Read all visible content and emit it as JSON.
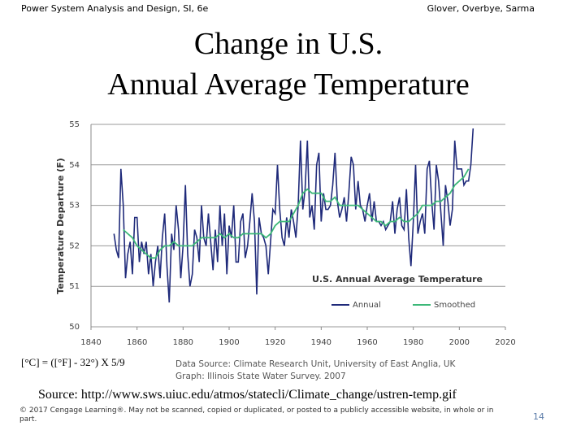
{
  "slide": {
    "header_left": "Power System Analysis and Design, SI, 6e",
    "header_right": "Glover, Overbye, Sarma",
    "title_lines": [
      "Change in U.S.",
      "Annual Average Temperature"
    ],
    "conversion": "[°C] = ([°F] - 32°) X 5/9",
    "data_source": [
      "Data Source: Climate Research Unit, University of East Anglia, UK",
      "Graph: Illinois State Water Survey. 2007"
    ],
    "source": "Source: http://www.sws.uiuc.edu/atmos/statecli/Climate_change/ustren-temp.gif",
    "copyright": "© 2017 Cengage Learning®. May not be scanned, copied or duplicated, or posted to a publicly accessible website, in whole or in part.",
    "page_number": "14"
  },
  "chart_data": {
    "type": "line",
    "title": "U.S. Annual Average Temperature",
    "ylabel": "Temperature Departure (F)",
    "xlim": [
      1840,
      2020
    ],
    "xticks": [
      1840,
      1860,
      1880,
      1900,
      1920,
      1940,
      1960,
      1980,
      2000,
      2020
    ],
    "ylim": [
      50,
      55
    ],
    "yticks": [
      50,
      51,
      52,
      53,
      54,
      55
    ],
    "grid": true,
    "legend": "lower right",
    "series": [
      {
        "name": "Annual",
        "color": "#1f2a7a",
        "x": [
          1850,
          1851,
          1852,
          1853,
          1854,
          1855,
          1856,
          1857,
          1858,
          1859,
          1860,
          1861,
          1862,
          1863,
          1864,
          1865,
          1866,
          1867,
          1868,
          1869,
          1870,
          1871,
          1872,
          1873,
          1874,
          1875,
          1876,
          1877,
          1878,
          1879,
          1880,
          1881,
          1882,
          1883,
          1884,
          1885,
          1886,
          1887,
          1888,
          1889,
          1890,
          1891,
          1892,
          1893,
          1894,
          1895,
          1896,
          1897,
          1898,
          1899,
          1900,
          1901,
          1902,
          1903,
          1904,
          1905,
          1906,
          1907,
          1908,
          1909,
          1910,
          1911,
          1912,
          1913,
          1914,
          1915,
          1916,
          1917,
          1918,
          1919,
          1920,
          1921,
          1922,
          1923,
          1924,
          1925,
          1926,
          1927,
          1928,
          1929,
          1930,
          1931,
          1932,
          1933,
          1934,
          1935,
          1936,
          1937,
          1938,
          1939,
          1940,
          1941,
          1942,
          1943,
          1944,
          1945,
          1946,
          1947,
          1948,
          1949,
          1950,
          1951,
          1952,
          1953,
          1954,
          1955,
          1956,
          1957,
          1958,
          1959,
          1960,
          1961,
          1962,
          1963,
          1964,
          1965,
          1966,
          1967,
          1968,
          1969,
          1970,
          1971,
          1972,
          1973,
          1974,
          1975,
          1976,
          1977,
          1978,
          1979,
          1980,
          1981,
          1982,
          1983,
          1984,
          1985,
          1986,
          1987,
          1988,
          1989,
          1990,
          1991,
          1992,
          1993,
          1994,
          1995,
          1996,
          1997,
          1998,
          1999,
          2000,
          2001,
          2002,
          2003,
          2004,
          2005,
          2006
        ],
        "values": [
          52.3,
          51.9,
          51.7,
          53.9,
          53.0,
          51.2,
          51.8,
          52.1,
          51.3,
          52.7,
          52.7,
          51.6,
          52.1,
          51.8,
          52.1,
          51.3,
          51.8,
          51.0,
          51.6,
          52.0,
          51.2,
          52.2,
          52.8,
          51.5,
          50.6,
          52.3,
          51.9,
          53.0,
          52.4,
          51.2,
          52.0,
          53.5,
          51.8,
          51.0,
          51.3,
          52.4,
          52.2,
          51.6,
          53.0,
          52.2,
          52.0,
          52.8,
          52.1,
          51.4,
          52.4,
          51.6,
          53.0,
          52.0,
          52.8,
          51.3,
          52.5,
          52.2,
          53.0,
          51.6,
          51.6,
          52.6,
          52.8,
          51.7,
          52.0,
          52.6,
          53.3,
          52.6,
          50.8,
          52.7,
          52.3,
          52.2,
          52.0,
          51.3,
          52.1,
          52.9,
          52.8,
          54.0,
          52.9,
          52.2,
          52.0,
          52.7,
          52.2,
          52.9,
          52.6,
          52.2,
          53.0,
          54.6,
          52.9,
          53.4,
          54.6,
          52.7,
          53.0,
          52.4,
          54.0,
          54.3,
          52.6,
          53.3,
          52.9,
          52.9,
          53.0,
          53.5,
          54.3,
          53.1,
          52.7,
          52.9,
          53.2,
          52.6,
          53.3,
          54.2,
          54.0,
          52.9,
          53.6,
          53.0,
          52.9,
          52.6,
          53.0,
          53.3,
          52.6,
          53.1,
          52.6,
          52.6,
          52.5,
          52.6,
          52.4,
          52.5,
          52.6,
          53.1,
          52.3,
          52.9,
          53.2,
          52.5,
          52.4,
          53.4,
          52.2,
          51.5,
          52.6,
          54.0,
          52.3,
          52.6,
          52.8,
          52.3,
          53.9,
          54.1,
          53.1,
          52.4,
          54.0,
          53.6,
          52.8,
          52.0,
          53.5,
          53.1,
          52.5,
          52.9,
          54.6,
          53.9,
          53.9,
          53.9,
          53.5,
          53.6,
          53.6,
          54.0,
          54.9
        ]
      },
      {
        "name": "Smoothed",
        "color": "#3cb878",
        "x": [
          1854,
          1856,
          1858,
          1860,
          1862,
          1864,
          1866,
          1868,
          1870,
          1872,
          1874,
          1876,
          1878,
          1880,
          1882,
          1884,
          1886,
          1888,
          1890,
          1892,
          1894,
          1896,
          1898,
          1900,
          1902,
          1904,
          1906,
          1908,
          1910,
          1912,
          1914,
          1916,
          1918,
          1920,
          1922,
          1924,
          1926,
          1928,
          1930,
          1932,
          1934,
          1936,
          1938,
          1940,
          1942,
          1944,
          1946,
          1948,
          1950,
          1952,
          1954,
          1956,
          1958,
          1960,
          1962,
          1964,
          1966,
          1968,
          1970,
          1972,
          1974,
          1976,
          1978,
          1980,
          1982,
          1984,
          1986,
          1988,
          1990,
          1992,
          1994,
          1996,
          1998,
          2000,
          2002,
          2004
        ],
        "values": [
          52.4,
          52.3,
          52.2,
          52.0,
          51.9,
          51.8,
          51.7,
          51.7,
          51.9,
          52.0,
          52.0,
          52.1,
          52.0,
          52.0,
          52.0,
          52.0,
          52.1,
          52.2,
          52.2,
          52.2,
          52.2,
          52.3,
          52.2,
          52.3,
          52.2,
          52.2,
          52.3,
          52.3,
          52.3,
          52.3,
          52.3,
          52.2,
          52.3,
          52.5,
          52.6,
          52.6,
          52.6,
          52.8,
          53.0,
          53.3,
          53.4,
          53.3,
          53.3,
          53.3,
          53.1,
          53.1,
          53.2,
          53.0,
          53.0,
          53.0,
          53.0,
          53.0,
          52.9,
          52.8,
          52.7,
          52.6,
          52.6,
          52.5,
          52.6,
          52.6,
          52.7,
          52.6,
          52.6,
          52.7,
          52.8,
          53.0,
          53.0,
          53.0,
          53.1,
          53.1,
          53.2,
          53.3,
          53.5,
          53.6,
          53.7,
          53.9
        ]
      }
    ]
  }
}
